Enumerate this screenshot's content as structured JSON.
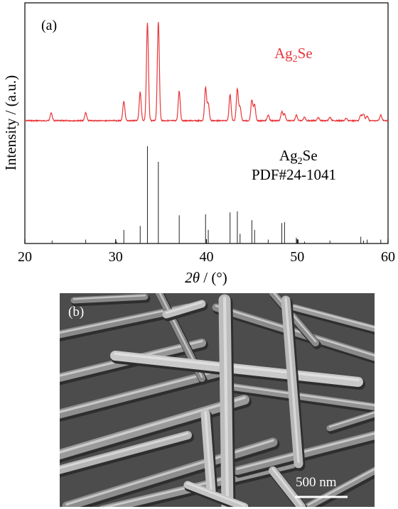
{
  "chart_data": {
    "type": "line",
    "panel_label": "(a)",
    "xlim": [
      20,
      60
    ],
    "xticks": [
      20,
      30,
      40,
      50,
      60
    ],
    "xlabel_symbol": "2θ",
    "xlabel_unit": " / (°)",
    "ylabel": "Intensity / (a.u.)",
    "series": [
      {
        "name_main": "Ag",
        "name_sub": "2",
        "name_tail": "Se",
        "color": "#e8373a",
        "peaks": [
          {
            "x": 22.9,
            "y": 0.07
          },
          {
            "x": 26.7,
            "y": 0.07
          },
          {
            "x": 30.9,
            "y": 0.17
          },
          {
            "x": 32.7,
            "y": 0.25
          },
          {
            "x": 33.5,
            "y": 0.86
          },
          {
            "x": 34.7,
            "y": 0.87
          },
          {
            "x": 37.0,
            "y": 0.26
          },
          {
            "x": 39.9,
            "y": 0.29
          },
          {
            "x": 40.2,
            "y": 0.15
          },
          {
            "x": 42.6,
            "y": 0.23
          },
          {
            "x": 43.4,
            "y": 0.28
          },
          {
            "x": 43.7,
            "y": 0.12
          },
          {
            "x": 45.0,
            "y": 0.18
          },
          {
            "x": 45.3,
            "y": 0.14
          },
          {
            "x": 46.8,
            "y": 0.05
          },
          {
            "x": 48.3,
            "y": 0.08
          },
          {
            "x": 48.6,
            "y": 0.06
          },
          {
            "x": 49.9,
            "y": 0.05
          },
          {
            "x": 50.8,
            "y": 0.03
          },
          {
            "x": 52.3,
            "y": 0.03
          },
          {
            "x": 53.6,
            "y": 0.03
          },
          {
            "x": 55.4,
            "y": 0.02
          },
          {
            "x": 57.0,
            "y": 0.05
          },
          {
            "x": 57.3,
            "y": 0.06
          },
          {
            "x": 57.7,
            "y": 0.04
          },
          {
            "x": 59.2,
            "y": 0.05
          }
        ]
      },
      {
        "name_main": "Ag",
        "name_sub": "2",
        "name_tail": "Se",
        "name_line2": "PDF#24-1041",
        "color": "#000000",
        "type": "stick",
        "sticks": [
          {
            "x": 23.0,
            "y": 0.03
          },
          {
            "x": 26.7,
            "y": 0.04
          },
          {
            "x": 30.1,
            "y": 0.02
          },
          {
            "x": 30.9,
            "y": 0.14
          },
          {
            "x": 32.7,
            "y": 0.18
          },
          {
            "x": 33.5,
            "y": 1.0
          },
          {
            "x": 34.7,
            "y": 0.84
          },
          {
            "x": 37.0,
            "y": 0.29
          },
          {
            "x": 39.9,
            "y": 0.3
          },
          {
            "x": 40.2,
            "y": 0.14
          },
          {
            "x": 42.6,
            "y": 0.32
          },
          {
            "x": 43.4,
            "y": 0.33
          },
          {
            "x": 43.7,
            "y": 0.1
          },
          {
            "x": 45.0,
            "y": 0.24
          },
          {
            "x": 45.3,
            "y": 0.14
          },
          {
            "x": 46.8,
            "y": 0.04
          },
          {
            "x": 48.3,
            "y": 0.21
          },
          {
            "x": 48.6,
            "y": 0.22
          },
          {
            "x": 49.9,
            "y": 0.06
          },
          {
            "x": 50.1,
            "y": 0.04
          },
          {
            "x": 50.8,
            "y": 0.02
          },
          {
            "x": 53.6,
            "y": 0.03
          },
          {
            "x": 57.0,
            "y": 0.07
          },
          {
            "x": 57.3,
            "y": 0.03
          },
          {
            "x": 57.7,
            "y": 0.04
          },
          {
            "x": 59.2,
            "y": 0.04
          }
        ]
      }
    ],
    "grid": false
  },
  "sem_image": {
    "panel_label": "(b)",
    "scale_bar_label": "500 nm"
  }
}
